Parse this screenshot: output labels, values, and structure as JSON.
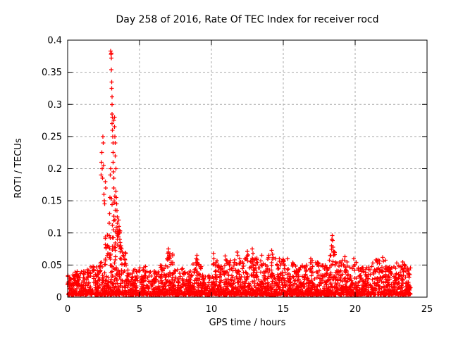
{
  "chart_data": {
    "type": "scatter",
    "title": "Day 258 of 2016, Rate Of TEC Index for receiver rocd",
    "xlabel": "GPS time / hours",
    "ylabel": "ROTI / TECUs",
    "xlim": [
      0,
      25
    ],
    "ylim": [
      0,
      0.4
    ],
    "xticks": [
      0,
      5,
      10,
      15,
      20,
      25
    ],
    "yticks": [
      0,
      0.05,
      0.1,
      0.15,
      0.2,
      0.25,
      0.3,
      0.35,
      0.4
    ],
    "grid": true,
    "legend": "none",
    "marker": {
      "shape": "plus",
      "color": "#ff0000",
      "size": 7
    },
    "series_name": "ROTI",
    "data_span_hours": [
      0.05,
      23.85
    ],
    "bands_format": "[x_start_hour, x_end_hour, typical_band_top_TECU, optional_points_per_hour]",
    "bands": [
      [
        0.0,
        0.5,
        0.035
      ],
      [
        0.5,
        1.0,
        0.04
      ],
      [
        1.0,
        1.6,
        0.045
      ],
      [
        1.6,
        2.2,
        0.048
      ],
      [
        2.2,
        2.6,
        0.055
      ],
      [
        2.6,
        3.0,
        0.1,
        140
      ],
      [
        3.0,
        3.35,
        0.16,
        170
      ],
      [
        3.35,
        3.7,
        0.11,
        150
      ],
      [
        3.7,
        4.1,
        0.07,
        130
      ],
      [
        4.1,
        5.0,
        0.045
      ],
      [
        5.0,
        5.6,
        0.048
      ],
      [
        5.6,
        6.4,
        0.042
      ],
      [
        6.4,
        6.9,
        0.05
      ],
      [
        6.9,
        7.3,
        0.068
      ],
      [
        7.3,
        8.0,
        0.045
      ],
      [
        8.0,
        8.7,
        0.042
      ],
      [
        8.7,
        9.3,
        0.055
      ],
      [
        9.3,
        10.1,
        0.035
      ],
      [
        10.1,
        10.4,
        0.06
      ],
      [
        10.4,
        11.0,
        0.05
      ],
      [
        11.0,
        11.5,
        0.058
      ],
      [
        11.5,
        12.2,
        0.062
      ],
      [
        12.2,
        12.8,
        0.068
      ],
      [
        12.8,
        13.2,
        0.062
      ],
      [
        13.2,
        13.9,
        0.058
      ],
      [
        13.9,
        14.5,
        0.068
      ],
      [
        14.5,
        15.1,
        0.06
      ],
      [
        15.1,
        16.0,
        0.055
      ],
      [
        16.0,
        16.8,
        0.05
      ],
      [
        16.8,
        17.5,
        0.055
      ],
      [
        17.5,
        18.2,
        0.05
      ],
      [
        18.2,
        18.6,
        0.075
      ],
      [
        18.6,
        19.4,
        0.058
      ],
      [
        19.4,
        20.1,
        0.055
      ],
      [
        20.1,
        21.2,
        0.048
      ],
      [
        21.2,
        22.1,
        0.058
      ],
      [
        22.1,
        23.0,
        0.048
      ],
      [
        23.0,
        23.5,
        0.052
      ],
      [
        23.5,
        23.85,
        0.046,
        160
      ]
    ],
    "peaks_format": "[hour, ROTI_TECU] explicit outlier points",
    "peaks": [
      [
        2.33,
        0.19
      ],
      [
        2.36,
        0.21
      ],
      [
        2.38,
        0.225
      ],
      [
        2.4,
        0.2
      ],
      [
        2.42,
        0.185
      ],
      [
        2.45,
        0.25
      ],
      [
        2.47,
        0.24
      ],
      [
        2.5,
        0.205
      ],
      [
        2.52,
        0.16
      ],
      [
        2.55,
        0.15
      ],
      [
        2.58,
        0.145
      ],
      [
        2.62,
        0.18
      ],
      [
        2.65,
        0.17
      ],
      [
        2.9,
        0.115
      ],
      [
        2.92,
        0.13
      ],
      [
        2.95,
        0.155
      ],
      [
        2.96,
        0.19
      ],
      [
        2.98,
        0.2
      ],
      [
        3.0,
        0.383
      ],
      [
        3.02,
        0.378
      ],
      [
        3.03,
        0.372
      ],
      [
        3.05,
        0.38
      ],
      [
        3.05,
        0.354
      ],
      [
        3.06,
        0.335
      ],
      [
        3.07,
        0.325
      ],
      [
        3.08,
        0.312
      ],
      [
        3.08,
        0.3
      ],
      [
        3.1,
        0.285
      ],
      [
        3.1,
        0.27
      ],
      [
        3.12,
        0.28
      ],
      [
        3.12,
        0.26
      ],
      [
        3.13,
        0.25
      ],
      [
        3.15,
        0.24
      ],
      [
        3.15,
        0.225
      ],
      [
        3.17,
        0.21
      ],
      [
        3.18,
        0.195
      ],
      [
        3.2,
        0.185
      ],
      [
        3.2,
        0.17
      ],
      [
        3.22,
        0.275
      ],
      [
        3.25,
        0.28
      ],
      [
        3.27,
        0.265
      ],
      [
        3.28,
        0.25
      ],
      [
        3.3,
        0.24
      ],
      [
        3.32,
        0.22
      ],
      [
        3.35,
        0.2
      ],
      [
        3.35,
        0.165
      ],
      [
        3.38,
        0.155
      ],
      [
        3.4,
        0.145
      ],
      [
        3.42,
        0.135
      ],
      [
        3.45,
        0.125
      ],
      [
        3.45,
        0.115
      ],
      [
        3.48,
        0.105
      ],
      [
        3.5,
        0.1
      ],
      [
        3.52,
        0.095
      ],
      [
        3.55,
        0.12
      ],
      [
        3.58,
        0.11
      ],
      [
        3.6,
        0.1
      ],
      [
        3.62,
        0.09
      ],
      [
        3.65,
        0.085
      ],
      [
        3.7,
        0.08
      ],
      [
        3.75,
        0.075
      ],
      [
        3.8,
        0.07
      ],
      [
        3.85,
        0.065
      ],
      [
        6.95,
        0.068
      ],
      [
        7.0,
        0.075
      ],
      [
        7.02,
        0.07
      ],
      [
        7.05,
        0.064
      ],
      [
        7.1,
        0.06
      ],
      [
        8.95,
        0.06
      ],
      [
        9.0,
        0.065
      ],
      [
        9.02,
        0.058
      ],
      [
        10.15,
        0.068
      ],
      [
        10.18,
        0.06
      ],
      [
        10.95,
        0.064
      ],
      [
        11.0,
        0.058
      ],
      [
        11.8,
        0.07
      ],
      [
        11.85,
        0.065
      ],
      [
        12.5,
        0.071
      ],
      [
        12.55,
        0.066
      ],
      [
        12.85,
        0.075
      ],
      [
        12.9,
        0.068
      ],
      [
        13.5,
        0.065
      ],
      [
        14.2,
        0.073
      ],
      [
        14.25,
        0.067
      ],
      [
        14.3,
        0.062
      ],
      [
        15.3,
        0.06
      ],
      [
        16.9,
        0.06
      ],
      [
        17.0,
        0.057
      ],
      [
        18.32,
        0.065
      ],
      [
        18.35,
        0.08
      ],
      [
        18.38,
        0.09
      ],
      [
        18.4,
        0.096
      ],
      [
        18.42,
        0.088
      ],
      [
        18.45,
        0.078
      ],
      [
        18.48,
        0.07
      ],
      [
        18.5,
        0.065
      ],
      [
        19.3,
        0.063
      ],
      [
        19.9,
        0.06
      ],
      [
        21.6,
        0.058
      ],
      [
        21.9,
        0.062
      ],
      [
        21.95,
        0.056
      ],
      [
        22.9,
        0.053
      ],
      [
        23.3,
        0.055
      ]
    ],
    "colors": {
      "points": "#ff0000",
      "axis": "#000000",
      "grid": "#aaaaaa",
      "background": "#ffffff",
      "text": "#000000"
    }
  }
}
